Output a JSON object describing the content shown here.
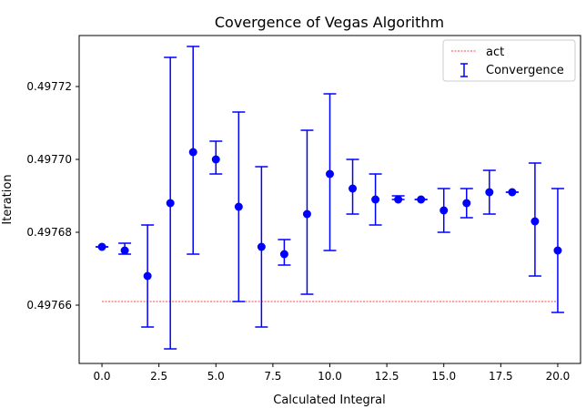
{
  "chart_data": {
    "type": "errorbar",
    "title": "Covergence of Vegas Algorithm",
    "xlabel": "Calculated Integral",
    "ylabel": "Iteration",
    "xlim": [
      -1.0,
      21.0
    ],
    "ylim": [
      0.497644,
      0.497734
    ],
    "xticks": [
      0.0,
      2.5,
      5.0,
      7.5,
      10.0,
      12.5,
      15.0,
      17.5,
      20.0
    ],
    "xtick_labels": [
      "0.0",
      "2.5",
      "5.0",
      "7.5",
      "10.0",
      "12.5",
      "15.0",
      "17.5",
      "20.0"
    ],
    "yticks": [
      0.49766,
      0.49768,
      0.4977,
      0.49772
    ],
    "ytick_labels": [
      "0.49766",
      "0.49768",
      "0.49770",
      "0.49772"
    ],
    "grid": false,
    "legend": {
      "position": "top-right",
      "entries": [
        {
          "label": "act",
          "kind": "dashed-line",
          "color": "#ff0000"
        },
        {
          "label": "Convergence",
          "kind": "errorbar",
          "color": "#0000ff"
        }
      ]
    },
    "act_line": {
      "name": "act",
      "y": 0.497661,
      "x_range": [
        0,
        20
      ],
      "color": "#ff0000"
    },
    "series": [
      {
        "name": "Convergence",
        "color": "#0000ff",
        "x": [
          0,
          1,
          2,
          3,
          4,
          5,
          6,
          7,
          8,
          9,
          10,
          11,
          12,
          13,
          14,
          15,
          16,
          17,
          18,
          19,
          20
        ],
        "y": [
          0.497676,
          0.497675,
          0.497668,
          0.497688,
          0.497702,
          0.4977,
          0.497687,
          0.497676,
          0.497674,
          0.497685,
          0.497696,
          0.497692,
          0.497689,
          0.497689,
          0.497689,
          0.497686,
          0.497688,
          0.497691,
          0.497691,
          0.497683,
          0.497675
        ],
        "lower": [
          0.497676,
          0.497674,
          0.497654,
          0.497648,
          0.497674,
          0.497696,
          0.497661,
          0.497654,
          0.497671,
          0.497663,
          0.497675,
          0.497685,
          0.497682,
          0.497689,
          0.497689,
          0.49768,
          0.497684,
          0.497685,
          0.497691,
          0.497668,
          0.497658
        ],
        "upper": [
          0.497676,
          0.497677,
          0.497682,
          0.497728,
          0.497731,
          0.497705,
          0.497713,
          0.497698,
          0.497678,
          0.497708,
          0.497718,
          0.4977,
          0.497696,
          0.49769,
          0.497689,
          0.497692,
          0.497692,
          0.497697,
          0.497691,
          0.497699,
          0.497692
        ]
      }
    ]
  }
}
